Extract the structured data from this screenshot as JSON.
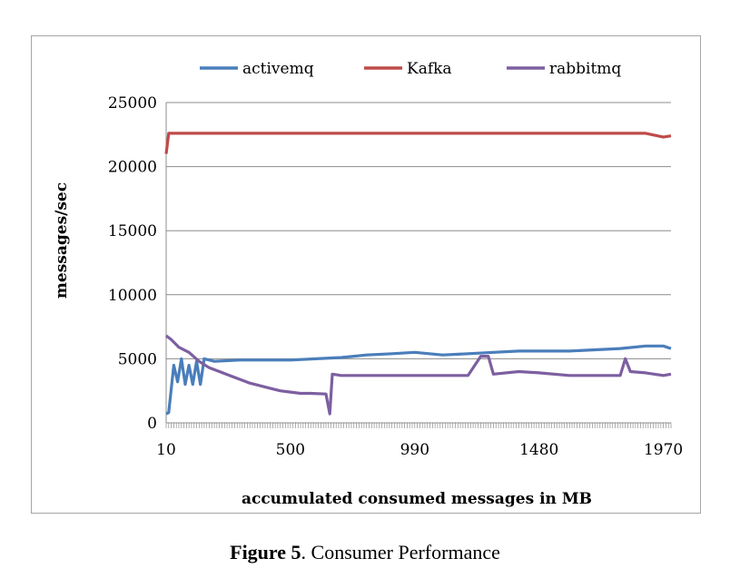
{
  "caption": {
    "label": "Figure 5",
    "text": ". Consumer Performance"
  },
  "chart_data": {
    "type": "line",
    "title": "",
    "xlabel": "accumulated consumed messages in MB",
    "ylabel": "messages/sec",
    "x_range": [
      10,
      2000
    ],
    "x_step": 10,
    "x_tick_labels": [
      "10",
      "500",
      "990",
      "1480",
      "1970"
    ],
    "x_tick_values": [
      10,
      500,
      990,
      1480,
      1970
    ],
    "ylim": [
      0,
      25000
    ],
    "y_ticks": [
      0,
      5000,
      10000,
      15000,
      20000,
      25000
    ],
    "grid": "horizontal",
    "legend_position": "top",
    "series": [
      {
        "name": "activemq",
        "color": "#4a7ebb",
        "points": [
          [
            10,
            700
          ],
          [
            20,
            800
          ],
          [
            40,
            4500
          ],
          [
            55,
            3200
          ],
          [
            70,
            5000
          ],
          [
            85,
            3000
          ],
          [
            100,
            4500
          ],
          [
            115,
            3000
          ],
          [
            130,
            4800
          ],
          [
            145,
            3000
          ],
          [
            160,
            5000
          ],
          [
            200,
            4800
          ],
          [
            300,
            4900
          ],
          [
            400,
            4900
          ],
          [
            500,
            4900
          ],
          [
            600,
            5000
          ],
          [
            700,
            5100
          ],
          [
            800,
            5300
          ],
          [
            900,
            5400
          ],
          [
            990,
            5500
          ],
          [
            1100,
            5300
          ],
          [
            1200,
            5400
          ],
          [
            1300,
            5500
          ],
          [
            1400,
            5600
          ],
          [
            1480,
            5600
          ],
          [
            1600,
            5600
          ],
          [
            1700,
            5700
          ],
          [
            1800,
            5800
          ],
          [
            1900,
            6000
          ],
          [
            1970,
            6000
          ],
          [
            2000,
            5800
          ]
        ]
      },
      {
        "name": "Kafka",
        "color": "#be4b48",
        "points": [
          [
            10,
            21000
          ],
          [
            20,
            22600
          ],
          [
            200,
            22600
          ],
          [
            400,
            22600
          ],
          [
            600,
            22600
          ],
          [
            800,
            22600
          ],
          [
            990,
            22600
          ],
          [
            1200,
            22600
          ],
          [
            1480,
            22600
          ],
          [
            1700,
            22600
          ],
          [
            1900,
            22600
          ],
          [
            1970,
            22300
          ],
          [
            2000,
            22400
          ]
        ]
      },
      {
        "name": "rabbitmq",
        "color": "#7d5fa0",
        "points": [
          [
            10,
            6800
          ],
          [
            30,
            6500
          ],
          [
            60,
            5900
          ],
          [
            100,
            5500
          ],
          [
            140,
            4800
          ],
          [
            180,
            4300
          ],
          [
            220,
            4000
          ],
          [
            260,
            3700
          ],
          [
            300,
            3400
          ],
          [
            340,
            3100
          ],
          [
            380,
            2900
          ],
          [
            420,
            2700
          ],
          [
            460,
            2500
          ],
          [
            500,
            2400
          ],
          [
            540,
            2300
          ],
          [
            580,
            2300
          ],
          [
            640,
            2250
          ],
          [
            655,
            700
          ],
          [
            665,
            3800
          ],
          [
            700,
            3700
          ],
          [
            800,
            3700
          ],
          [
            900,
            3700
          ],
          [
            990,
            3700
          ],
          [
            1100,
            3700
          ],
          [
            1200,
            3700
          ],
          [
            1250,
            5200
          ],
          [
            1280,
            5200
          ],
          [
            1300,
            3800
          ],
          [
            1400,
            4000
          ],
          [
            1480,
            3900
          ],
          [
            1600,
            3700
          ],
          [
            1700,
            3700
          ],
          [
            1800,
            3700
          ],
          [
            1820,
            5000
          ],
          [
            1840,
            4000
          ],
          [
            1900,
            3900
          ],
          [
            1970,
            3700
          ],
          [
            2000,
            3800
          ]
        ]
      }
    ]
  }
}
